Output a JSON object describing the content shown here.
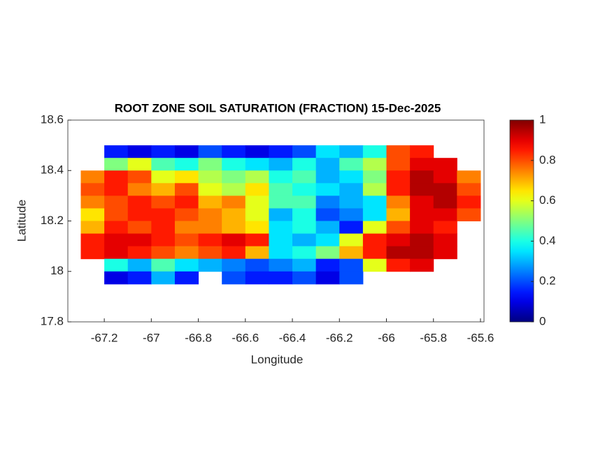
{
  "chart_data": {
    "type": "heatmap",
    "title": "ROOT ZONE SOIL SATURATION (FRACTION) 15-Dec-2025",
    "x_label": "Longitude",
    "y_label": "Latitude",
    "xlim": [
      -67.355,
      -65.585
    ],
    "ylim": [
      17.8,
      18.6
    ],
    "xticks": [
      -67.2,
      -67,
      -66.8,
      -66.6,
      -66.4,
      -66.2,
      -66,
      -65.8,
      -65.6
    ],
    "yticks": [
      17.8,
      18,
      18.2,
      18.4,
      18.6
    ],
    "colormap": "jet",
    "clim": [
      0,
      1
    ],
    "cticks": [
      0,
      0.2,
      0.4,
      0.6,
      0.8,
      1
    ],
    "x": [
      -67.25,
      -67.15,
      -67.05,
      -66.95,
      -66.85,
      -66.75,
      -66.65,
      -66.55,
      -66.45,
      -66.35,
      -66.25,
      -66.15,
      -66.05,
      -65.95,
      -65.85,
      -65.75,
      -65.65
    ],
    "y": [
      18.475,
      18.425,
      18.375,
      18.325,
      18.275,
      18.225,
      18.175,
      18.125,
      18.075,
      18.025,
      17.975
    ],
    "z": [
      [
        null,
        0.15,
        0.1,
        0.15,
        0.1,
        0.2,
        0.15,
        0.1,
        0.15,
        0.2,
        0.35,
        0.3,
        0.4,
        0.8,
        0.85,
        null,
        null
      ],
      [
        null,
        0.5,
        0.6,
        0.45,
        0.4,
        0.5,
        0.4,
        0.35,
        0.3,
        0.4,
        0.3,
        0.45,
        0.55,
        0.8,
        0.9,
        0.9,
        null
      ],
      [
        0.75,
        0.85,
        0.8,
        0.6,
        0.65,
        0.55,
        0.5,
        0.55,
        0.4,
        0.45,
        0.3,
        0.35,
        0.5,
        0.85,
        0.95,
        0.9,
        0.75
      ],
      [
        0.8,
        0.85,
        0.75,
        0.7,
        0.8,
        0.6,
        0.55,
        0.65,
        0.45,
        0.4,
        0.35,
        0.3,
        0.55,
        0.85,
        0.95,
        0.95,
        0.8
      ],
      [
        0.75,
        0.8,
        0.85,
        0.8,
        0.85,
        0.7,
        0.75,
        0.6,
        0.45,
        0.45,
        0.25,
        0.3,
        0.35,
        0.75,
        0.9,
        0.95,
        0.85
      ],
      [
        0.65,
        0.8,
        0.85,
        0.85,
        0.8,
        0.75,
        0.7,
        0.6,
        0.3,
        0.4,
        0.2,
        0.25,
        0.35,
        0.7,
        0.9,
        0.9,
        0.8
      ],
      [
        0.7,
        0.85,
        0.8,
        0.85,
        0.75,
        0.75,
        0.7,
        0.65,
        0.35,
        0.4,
        0.3,
        0.15,
        0.6,
        0.8,
        0.9,
        0.85,
        null
      ],
      [
        0.85,
        0.9,
        0.9,
        0.85,
        0.8,
        0.85,
        0.9,
        0.85,
        0.35,
        0.3,
        0.35,
        0.6,
        0.85,
        0.9,
        0.95,
        0.9,
        null
      ],
      [
        0.85,
        0.9,
        0.85,
        0.8,
        0.75,
        0.8,
        0.85,
        0.7,
        0.35,
        0.4,
        0.5,
        0.7,
        0.85,
        0.95,
        0.95,
        0.9,
        null
      ],
      [
        null,
        0.4,
        0.3,
        0.45,
        0.35,
        0.3,
        0.25,
        0.2,
        0.25,
        0.3,
        0.15,
        0.2,
        0.6,
        0.85,
        0.9,
        null,
        null
      ],
      [
        null,
        0.1,
        0.15,
        0.3,
        0.15,
        null,
        0.2,
        0.15,
        0.15,
        0.2,
        0.1,
        0.2,
        null,
        null,
        null,
        null,
        null
      ]
    ]
  }
}
